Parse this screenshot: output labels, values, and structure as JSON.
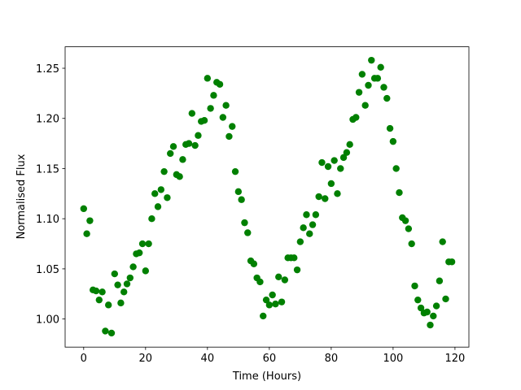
{
  "chart_data": {
    "type": "scatter",
    "color": "#008000",
    "xlabel": "Time (Hours)",
    "ylabel": "Normalised Flux",
    "x": [
      0,
      1,
      2,
      3,
      4,
      5,
      6,
      7,
      8,
      9,
      10,
      11,
      12,
      13,
      14,
      15,
      16,
      17,
      18,
      19,
      20,
      21,
      22,
      23,
      24,
      25,
      26,
      27,
      28,
      29,
      30,
      31,
      32,
      33,
      34,
      35,
      36,
      37,
      38,
      39,
      40,
      41,
      42,
      43,
      44,
      45,
      46,
      47,
      48,
      49,
      50,
      51,
      52,
      53,
      54,
      55,
      56,
      57,
      58,
      59,
      60,
      61,
      62,
      63,
      64,
      65,
      66,
      67,
      68,
      69,
      70,
      71,
      72,
      73,
      74,
      75,
      76,
      77,
      78,
      79,
      80,
      81,
      82,
      83,
      84,
      85,
      86,
      87,
      88,
      89,
      90,
      91,
      92,
      93,
      94,
      95,
      96,
      97,
      98,
      99,
      100,
      101,
      102,
      103,
      104,
      105,
      106,
      107,
      108,
      109,
      110,
      111,
      112,
      113,
      114,
      115,
      116,
      117,
      118,
      119
    ],
    "values": [
      1.11,
      1.085,
      1.098,
      1.029,
      1.028,
      1.019,
      1.027,
      0.988,
      1.014,
      0.986,
      1.045,
      1.034,
      1.016,
      1.027,
      1.035,
      1.041,
      1.052,
      1.065,
      1.066,
      1.075,
      1.048,
      1.075,
      1.1,
      1.125,
      1.112,
      1.129,
      1.147,
      1.121,
      1.165,
      1.172,
      1.144,
      1.142,
      1.159,
      1.174,
      1.175,
      1.205,
      1.173,
      1.183,
      1.197,
      1.198,
      1.24,
      1.21,
      1.223,
      1.236,
      1.234,
      1.201,
      1.213,
      1.182,
      1.192,
      1.147,
      1.127,
      1.119,
      1.096,
      1.086,
      1.058,
      1.055,
      1.041,
      1.037,
      1.003,
      1.019,
      1.014,
      1.024,
      1.015,
      1.042,
      1.017,
      1.039,
      1.061,
      1.061,
      1.061,
      1.049,
      1.077,
      1.091,
      1.104,
      1.085,
      1.094,
      1.104,
      1.122,
      1.156,
      1.12,
      1.152,
      1.135,
      1.158,
      1.125,
      1.15,
      1.161,
      1.166,
      1.174,
      1.199,
      1.201,
      1.226,
      1.244,
      1.213,
      1.233,
      1.258,
      1.24,
      1.24,
      1.251,
      1.231,
      1.22,
      1.19,
      1.177,
      1.15,
      1.126,
      1.101,
      1.098,
      1.09,
      1.075,
      1.033,
      1.019,
      1.011,
      1.006,
      1.007,
      0.994,
      1.003,
      1.013,
      1.038,
      1.077,
      1.02,
      1.057,
      1.057
    ],
    "xlim": [
      -6,
      124.5
    ],
    "ylim": [
      0.972,
      1.2714
    ],
    "xticks": [
      0,
      20,
      40,
      60,
      80,
      100,
      120
    ],
    "yticks": [
      {
        "value": 1.0,
        "label": "1.00"
      },
      1.05,
      {
        "value": 1.1,
        "label": "1.10"
      },
      1.15,
      {
        "value": 1.2,
        "label": "1.20"
      },
      1.25
    ]
  }
}
